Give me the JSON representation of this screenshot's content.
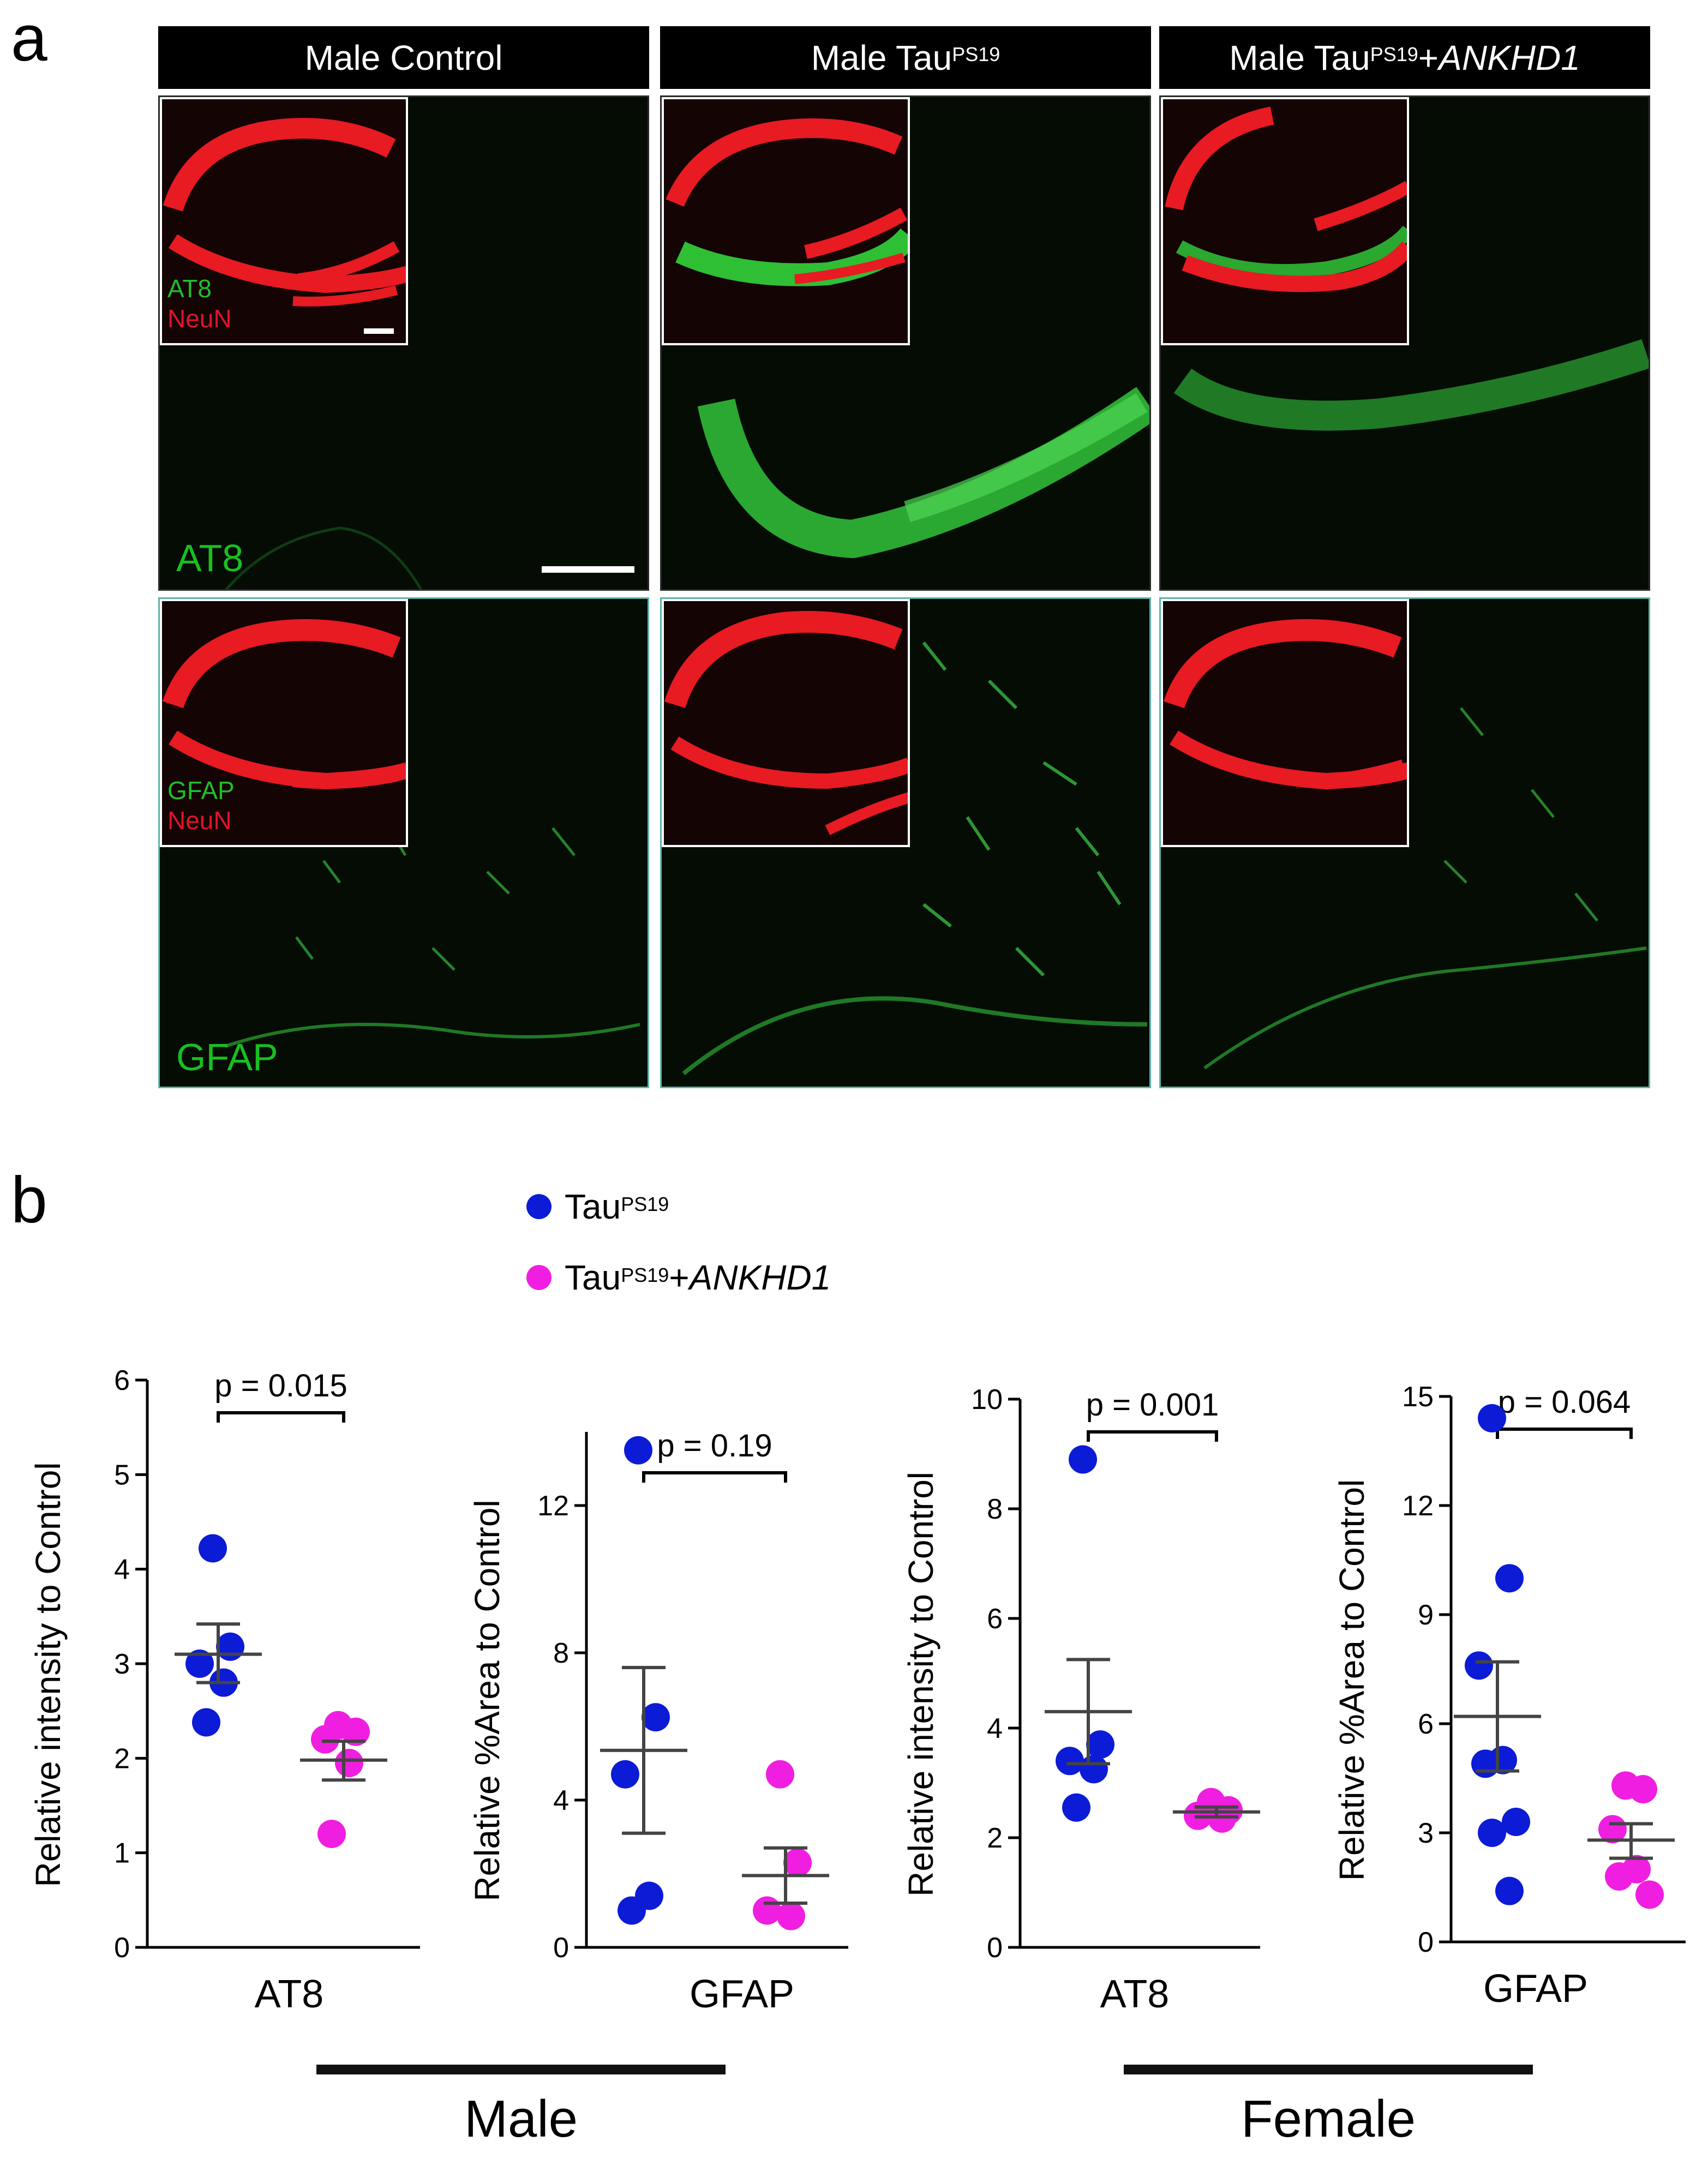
{
  "panel_a": {
    "letter": "a",
    "columns": [
      {
        "base": "Male Control",
        "sup": "",
        "suffix": "",
        "suffix_italic": ""
      },
      {
        "base": "Male Tau",
        "sup": "PS19",
        "suffix": "",
        "suffix_italic": ""
      },
      {
        "base": "Male Tau",
        "sup": "PS19",
        "suffix": "+",
        "suffix_italic": "ANKHD1"
      }
    ],
    "rows": [
      {
        "stain_label": "AT8",
        "inset_green": "AT8",
        "inset_red": "NeuN"
      },
      {
        "stain_label": "GFAP",
        "inset_green": "GFAP",
        "inset_red": "NeuN"
      }
    ],
    "colors": {
      "green": "#1fbf2a",
      "red": "#e0132a",
      "frame_bottom": "#5fb3a6"
    }
  },
  "panel_b": {
    "letter": "b",
    "legend": [
      {
        "base": "Tau",
        "sup": "PS19",
        "suffix": "",
        "suffix_italic": "",
        "color": "#0b1bd6"
      },
      {
        "base": "Tau",
        "sup": "PS19",
        "suffix": "+",
        "suffix_italic": "ANKHD1",
        "color": "#f01ee0"
      }
    ],
    "groups": [
      "Male",
      "Female"
    ]
  },
  "chart_data": [
    {
      "type": "scatter",
      "ylabel": "Relative intensity to Control",
      "xlabel": "AT8",
      "ylim": [
        0,
        6
      ],
      "yticks": [
        0,
        1,
        2,
        3,
        4,
        5,
        6
      ],
      "pvalue": "p = 0.015",
      "series": [
        {
          "values": [
            4.22,
            3.18,
            3.0,
            2.8,
            2.38
          ],
          "mean": 3.1,
          "sem_low": 2.8,
          "sem_high": 3.42
        },
        {
          "values": [
            2.35,
            2.28,
            2.2,
            1.95,
            1.2
          ],
          "mean": 1.98,
          "sem_low": 1.77,
          "sem_high": 2.18
        }
      ]
    },
    {
      "type": "scatter",
      "ylabel": "Relative %Area to Control",
      "xlabel": "GFAP",
      "ylim": [
        0,
        14
      ],
      "yticks": [
        0,
        4,
        8,
        12
      ],
      "pvalue": "p = 0.19",
      "series": [
        {
          "values": [
            13.5,
            6.25,
            4.7,
            1.4,
            1.0
          ],
          "mean": 5.35,
          "sem_low": 3.1,
          "sem_high": 7.6
        },
        {
          "values": [
            4.7,
            2.3,
            1.0,
            0.85
          ],
          "mean": 1.95,
          "sem_low": 1.2,
          "sem_high": 2.7
        }
      ]
    },
    {
      "type": "scatter",
      "ylabel": "Relative intensity to Control",
      "xlabel": "AT8",
      "ylim": [
        0,
        10
      ],
      "yticks": [
        0,
        2,
        4,
        6,
        8,
        10
      ],
      "pvalue": "p = 0.001",
      "series": [
        {
          "values": [
            8.9,
            3.7,
            3.4,
            3.25,
            2.55
          ],
          "mean": 4.3,
          "sem_low": 3.35,
          "sem_high": 5.25
        },
        {
          "values": [
            2.65,
            2.5,
            2.4,
            2.35
          ],
          "mean": 2.47,
          "sem_low": 2.38,
          "sem_high": 2.56
        }
      ]
    },
    {
      "type": "scatter",
      "ylabel": "Relative %Area to Control",
      "xlabel": "GFAP",
      "ylim": [
        0,
        15
      ],
      "yticks": [
        0,
        3,
        6,
        9,
        12,
        15
      ],
      "pvalue": "p = 0.064",
      "series": [
        {
          "values": [
            14.4,
            10.0,
            7.6,
            5.0,
            4.9,
            3.3,
            3.0,
            1.4
          ],
          "mean": 6.2,
          "sem_low": 4.7,
          "sem_high": 7.7
        },
        {
          "values": [
            4.3,
            4.2,
            3.1,
            2.0,
            1.8,
            1.3
          ],
          "mean": 2.8,
          "sem_low": 2.3,
          "sem_high": 3.25
        }
      ]
    }
  ]
}
